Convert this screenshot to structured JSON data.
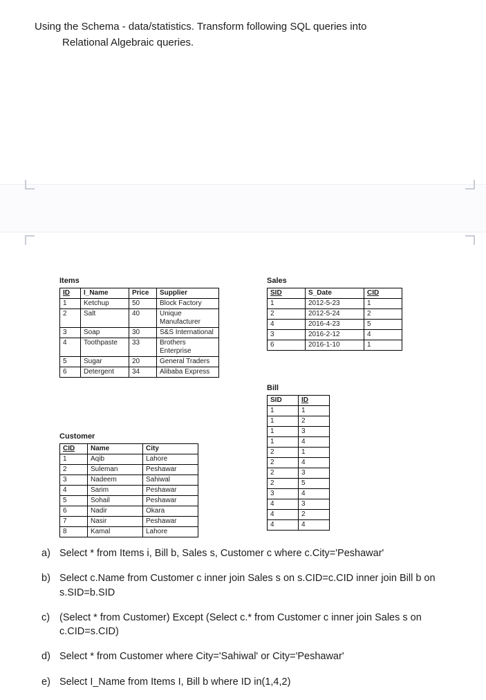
{
  "intro": {
    "line1": "Using the Schema - data/statistics. Transform following SQL queries into",
    "line2": "Relational Algebraic queries."
  },
  "items": {
    "title": "Items",
    "columns": [
      "ID",
      "I_Name",
      "Price",
      "Supplier"
    ],
    "underline": [
      true,
      false,
      false,
      false
    ],
    "widths": [
      30,
      70,
      40,
      90
    ],
    "rows": [
      [
        "1",
        "Ketchup",
        "50",
        "Block Factory"
      ],
      [
        "2",
        "Salt",
        "40",
        "Unique Manufacturer"
      ],
      [
        "3",
        "Soap",
        "30",
        "S&S International"
      ],
      [
        "4",
        "Toothpaste",
        "33",
        "Brothers Enterprise"
      ],
      [
        "5",
        "Sugar",
        "20",
        "General Traders"
      ],
      [
        "6",
        "Detergent",
        "34",
        "Alibaba Express"
      ]
    ]
  },
  "sales": {
    "title": "Sales",
    "columns": [
      "SID",
      "S_Date",
      "CID"
    ],
    "underline": [
      true,
      false,
      true
    ],
    "widths": [
      55,
      85,
      55
    ],
    "rows": [
      [
        "1",
        "2012-5-23",
        "1"
      ],
      [
        "2",
        "2012-5-24",
        "2"
      ],
      [
        "4",
        "2016-4-23",
        "5"
      ],
      [
        "3",
        "2016-2-12",
        "4"
      ],
      [
        "6",
        "2016-1-10",
        "1"
      ]
    ]
  },
  "bill": {
    "title": "Bill",
    "columns": [
      "SID",
      "ID"
    ],
    "underline": [
      false,
      true
    ],
    "widths": [
      45,
      45
    ],
    "rows": [
      [
        "1",
        "1"
      ],
      [
        "1",
        "2"
      ],
      [
        "1",
        "3"
      ],
      [
        "1",
        "4"
      ],
      [
        "2",
        "1"
      ],
      [
        "2",
        "4"
      ],
      [
        "2",
        "3"
      ],
      [
        "2",
        "5"
      ],
      [
        "3",
        "4"
      ],
      [
        "4",
        "3"
      ],
      [
        "4",
        "2"
      ],
      [
        "4",
        "4"
      ]
    ]
  },
  "customer": {
    "title": "Customer",
    "columns": [
      "CID",
      "Name",
      "City"
    ],
    "underline": [
      true,
      false,
      false
    ],
    "widths": [
      40,
      80,
      80
    ],
    "rows": [
      [
        "1",
        "Aqib",
        "Lahore"
      ],
      [
        "2",
        "Suleman",
        "Peshawar"
      ],
      [
        "3",
        "Nadeem",
        "Sahiwal"
      ],
      [
        "4",
        "Sarim",
        "Peshawar"
      ],
      [
        "5",
        "Sohail",
        "Peshawar"
      ],
      [
        "6",
        "Nadir",
        "Okara"
      ],
      [
        "7",
        "Nasir",
        "Peshawar"
      ],
      [
        "8",
        "Kamal",
        "Lahore"
      ]
    ]
  },
  "queries": [
    {
      "label": "a)",
      "text": "Select * from Items i, Bill b, Sales s, Customer c where c.City='Peshawar'"
    },
    {
      "label": "b)",
      "text": "Select c.Name from Customer c inner join Sales s on s.CID=c.CID inner join Bill b on s.SID=b.SID"
    },
    {
      "label": "c)",
      "text": "(Select * from Customer) Except (Select c.* from Customer c inner join Sales s on c.CID=s.CID)"
    },
    {
      "label": "d)",
      "text": "Select * from Customer where City='Sahiwal' or City='Peshawar'"
    },
    {
      "label": "e)",
      "text": "Select I_Name from Items I, Bill b  where ID in(1,4,2)"
    }
  ]
}
